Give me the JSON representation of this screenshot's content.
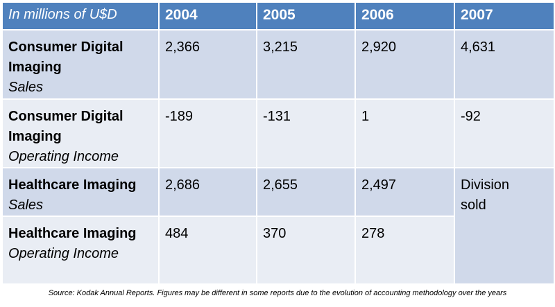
{
  "chart_data": {
    "type": "table",
    "header": {
      "corner": "In millions of U$D",
      "years": [
        "2004",
        "2005",
        "2006",
        "2007"
      ]
    },
    "rows": [
      {
        "title": "Consumer Digital Imaging",
        "subtitle": "Sales",
        "values": [
          "2,366",
          "3,215",
          "2,920",
          "4,631"
        ]
      },
      {
        "title": "Consumer Digital Imaging",
        "subtitle": "Operating Income",
        "values": [
          "-189",
          "-131",
          "1",
          "-92"
        ]
      },
      {
        "title": "Healthcare Imaging",
        "subtitle": "Sales",
        "values": [
          "2,686",
          "2,655",
          "2,497"
        ]
      },
      {
        "title": "Healthcare Imaging",
        "subtitle": "Operating Income",
        "values": [
          "484",
          "370",
          "278"
        ]
      }
    ],
    "merged_note": "Division sold",
    "source": "Source: Kodak Annual Reports. Figures may be different in some reports due to the evolution of accounting methodology over the years"
  },
  "colors": {
    "header_bg": "#4f81bd",
    "row_dark": "#d0d9ea",
    "row_light": "#e9edf4"
  }
}
